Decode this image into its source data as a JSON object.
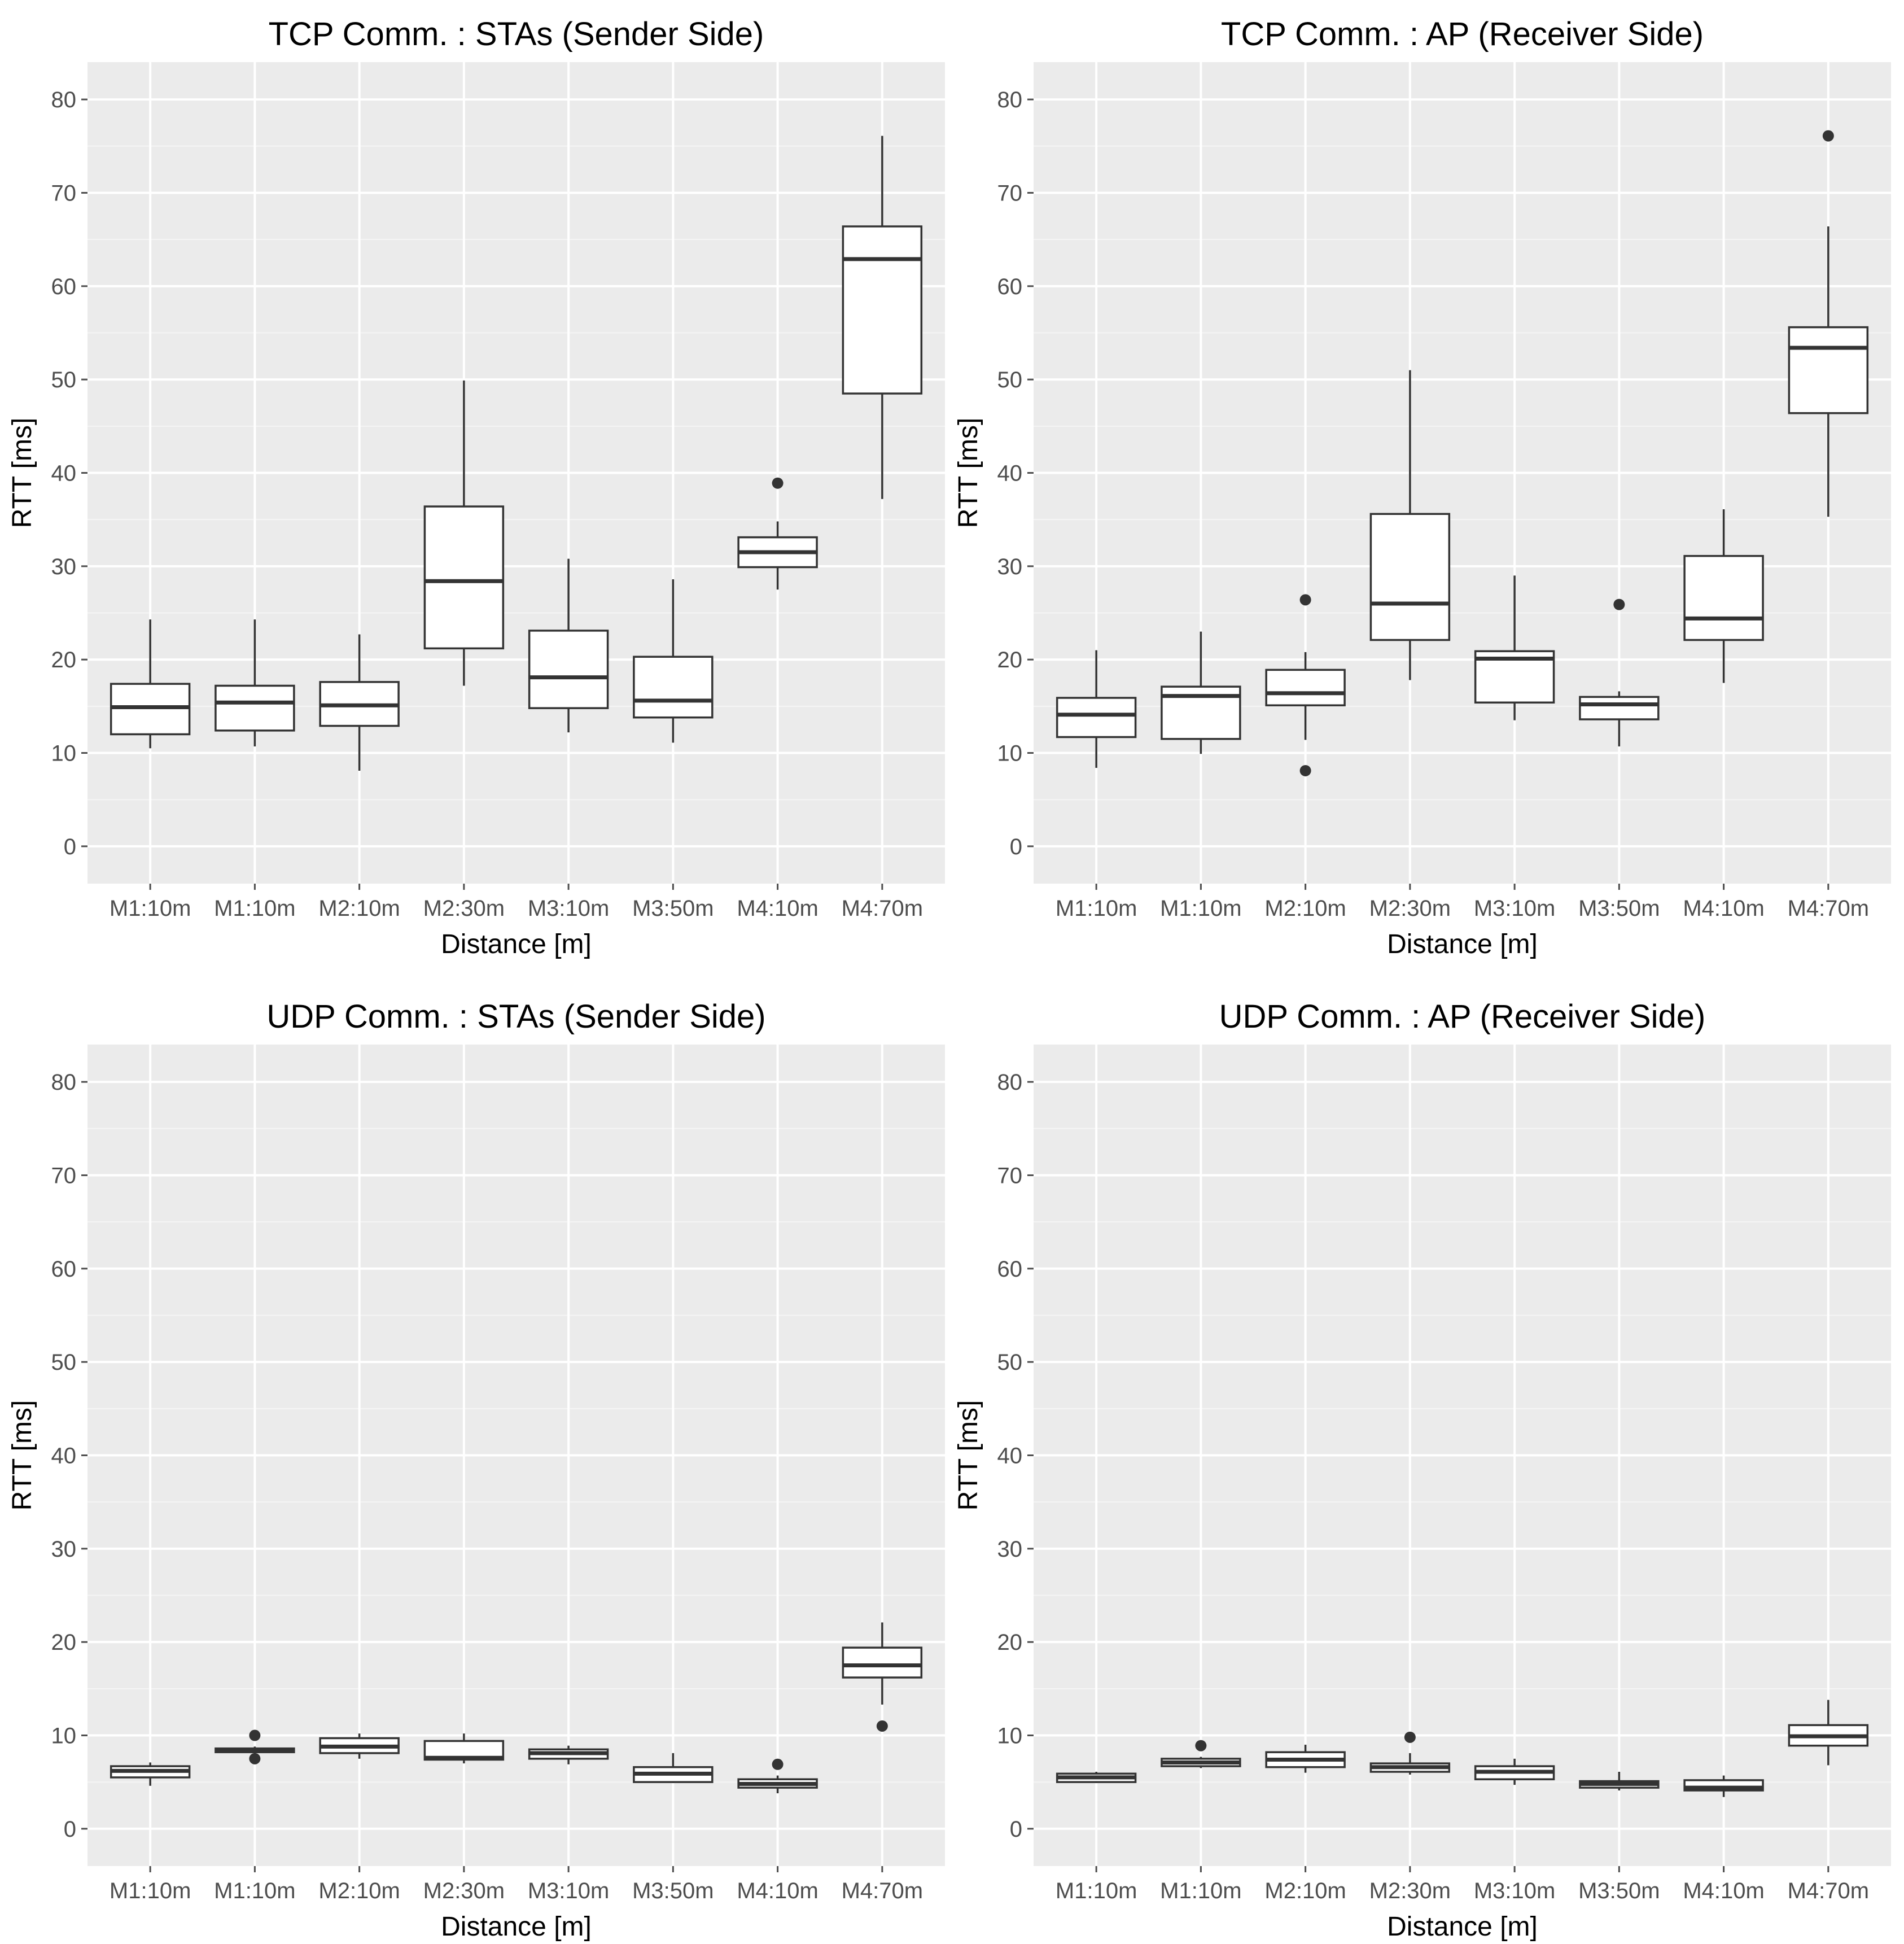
{
  "figure": {
    "panel_background": "#ebebeb",
    "grid_major": "#ffffff",
    "grid_minor": "#f5f5f5",
    "box_fill": "#ffffff",
    "box_stroke": "#333333",
    "tick_color": "#4d4d4d"
  },
  "chart_data": [
    {
      "type": "boxplot",
      "title": "TCP Comm. : STAs (Sender Side)",
      "xlabel": "Distance [m]",
      "ylabel": "RTT [ms]",
      "ylim": [
        -4,
        84
      ],
      "yticks": [
        0,
        10,
        20,
        30,
        40,
        50,
        60,
        70,
        80
      ],
      "ytick_labels": [
        "0",
        "10",
        "20",
        "30",
        "40",
        "50",
        "60",
        "70",
        "80"
      ],
      "categories": [
        "M1:10m",
        "M1:10m",
        "M2:10m",
        "M2:30m",
        "M3:10m",
        "M3:50m",
        "M4:10m",
        "M4:70m"
      ],
      "boxes": [
        {
          "lower": 10.5,
          "q1": 12.0,
          "median": 14.9,
          "q3": 17.4,
          "upper": 24.3,
          "outliers": []
        },
        {
          "lower": 10.7,
          "q1": 12.4,
          "median": 15.4,
          "q3": 17.2,
          "upper": 24.3,
          "outliers": []
        },
        {
          "lower": 8.1,
          "q1": 12.9,
          "median": 15.1,
          "q3": 17.6,
          "upper": 22.7,
          "outliers": []
        },
        {
          "lower": 17.2,
          "q1": 21.2,
          "median": 28.4,
          "q3": 36.4,
          "upper": 49.9,
          "outliers": []
        },
        {
          "lower": 12.2,
          "q1": 14.8,
          "median": 18.1,
          "q3": 23.1,
          "upper": 30.8,
          "outliers": []
        },
        {
          "lower": 11.1,
          "q1": 13.8,
          "median": 15.6,
          "q3": 20.3,
          "upper": 28.6,
          "outliers": []
        },
        {
          "lower": 27.5,
          "q1": 29.9,
          "median": 31.5,
          "q3": 33.1,
          "upper": 34.8,
          "outliers": [
            38.9
          ]
        },
        {
          "lower": 37.2,
          "q1": 48.5,
          "median": 62.9,
          "q3": 66.4,
          "upper": 76.1,
          "outliers": []
        }
      ]
    },
    {
      "type": "boxplot",
      "title": "TCP Comm. : AP (Receiver Side)",
      "xlabel": "Distance [m]",
      "ylabel": "RTT [ms]",
      "ylim": [
        -4,
        84
      ],
      "yticks": [
        0,
        10,
        20,
        30,
        40,
        50,
        60,
        70,
        80
      ],
      "ytick_labels": [
        "0",
        "10",
        "20",
        "30",
        "40",
        "50",
        "60",
        "70",
        "80"
      ],
      "categories": [
        "M1:10m",
        "M1:10m",
        "M2:10m",
        "M2:30m",
        "M3:10m",
        "M3:50m",
        "M4:10m",
        "M4:70m"
      ],
      "boxes": [
        {
          "lower": 8.4,
          "q1": 11.7,
          "median": 14.1,
          "q3": 15.9,
          "upper": 21.0,
          "outliers": []
        },
        {
          "lower": 9.9,
          "q1": 11.5,
          "median": 16.1,
          "q3": 17.1,
          "upper": 23.0,
          "outliers": []
        },
        {
          "lower": 11.4,
          "q1": 15.1,
          "median": 16.4,
          "q3": 18.9,
          "upper": 20.8,
          "outliers": [
            26.4,
            8.1
          ]
        },
        {
          "lower": 17.8,
          "q1": 22.1,
          "median": 26.0,
          "q3": 35.6,
          "upper": 51.0,
          "outliers": []
        },
        {
          "lower": 13.5,
          "q1": 15.4,
          "median": 20.1,
          "q3": 20.9,
          "upper": 29.0,
          "outliers": []
        },
        {
          "lower": 10.7,
          "q1": 13.6,
          "median": 15.2,
          "q3": 16.0,
          "upper": 16.6,
          "outliers": [
            25.9
          ]
        },
        {
          "lower": 17.5,
          "q1": 22.1,
          "median": 24.4,
          "q3": 31.1,
          "upper": 36.1,
          "outliers": []
        },
        {
          "lower": 35.3,
          "q1": 46.4,
          "median": 53.4,
          "q3": 55.6,
          "upper": 66.4,
          "outliers": [
            76.1
          ]
        }
      ]
    },
    {
      "type": "boxplot",
      "title": "UDP Comm. : STAs (Sender Side)",
      "xlabel": "Distance [m]",
      "ylabel": "RTT [ms]",
      "ylim": [
        -4,
        84
      ],
      "yticks": [
        0,
        10,
        20,
        30,
        40,
        50,
        60,
        70,
        80
      ],
      "ytick_labels": [
        "0",
        "10",
        "20",
        "30",
        "40",
        "50",
        "60",
        "70",
        "80"
      ],
      "categories": [
        "M1:10m",
        "M1:10m",
        "M2:10m",
        "M2:30m",
        "M3:10m",
        "M3:50m",
        "M4:10m",
        "M4:70m"
      ],
      "boxes": [
        {
          "lower": 4.6,
          "q1": 5.5,
          "median": 6.2,
          "q3": 6.7,
          "upper": 7.1,
          "outliers": []
        },
        {
          "lower": 8.1,
          "q1": 8.2,
          "median": 8.4,
          "q3": 8.6,
          "upper": 8.8,
          "outliers": [
            10.0,
            7.5
          ]
        },
        {
          "lower": 7.5,
          "q1": 8.1,
          "median": 8.8,
          "q3": 9.7,
          "upper": 10.2,
          "outliers": []
        },
        {
          "lower": 7.0,
          "q1": 7.4,
          "median": 7.6,
          "q3": 9.4,
          "upper": 10.2,
          "outliers": []
        },
        {
          "lower": 6.9,
          "q1": 7.5,
          "median": 8.1,
          "q3": 8.5,
          "upper": 8.9,
          "outliers": []
        },
        {
          "lower": 4.9,
          "q1": 5.0,
          "median": 5.9,
          "q3": 6.6,
          "upper": 8.1,
          "outliers": []
        },
        {
          "lower": 3.8,
          "q1": 4.4,
          "median": 4.8,
          "q3": 5.3,
          "upper": 5.7,
          "outliers": [
            6.9
          ]
        },
        {
          "lower": 13.3,
          "q1": 16.2,
          "median": 17.5,
          "q3": 19.4,
          "upper": 22.1,
          "outliers": [
            11.0
          ]
        }
      ]
    },
    {
      "type": "boxplot",
      "title": "UDP Comm. : AP (Receiver Side)",
      "xlabel": "Distance [m]",
      "ylabel": "RTT [ms]",
      "ylim": [
        -4,
        84
      ],
      "yticks": [
        0,
        10,
        20,
        30,
        40,
        50,
        60,
        70,
        80
      ],
      "ytick_labels": [
        "0",
        "10",
        "20",
        "30",
        "40",
        "50",
        "60",
        "70",
        "80"
      ],
      "categories": [
        "M1:10m",
        "M1:10m",
        "M2:10m",
        "M2:30m",
        "M3:10m",
        "M3:50m",
        "M4:10m",
        "M4:70m"
      ],
      "boxes": [
        {
          "lower": 4.9,
          "q1": 5.0,
          "median": 5.5,
          "q3": 5.9,
          "upper": 6.1,
          "outliers": []
        },
        {
          "lower": 6.5,
          "q1": 6.7,
          "median": 7.1,
          "q3": 7.5,
          "upper": 7.7,
          "outliers": [
            8.9
          ]
        },
        {
          "lower": 6.0,
          "q1": 6.6,
          "median": 7.4,
          "q3": 8.2,
          "upper": 9.0,
          "outliers": []
        },
        {
          "lower": 5.8,
          "q1": 6.1,
          "median": 6.6,
          "q3": 7.0,
          "upper": 8.1,
          "outliers": [
            9.8
          ]
        },
        {
          "lower": 4.7,
          "q1": 5.3,
          "median": 6.1,
          "q3": 6.7,
          "upper": 7.5,
          "outliers": []
        },
        {
          "lower": 4.1,
          "q1": 4.4,
          "median": 4.8,
          "q3": 5.1,
          "upper": 6.1,
          "outliers": []
        },
        {
          "lower": 3.4,
          "q1": 4.1,
          "median": 4.4,
          "q3": 5.2,
          "upper": 5.7,
          "outliers": []
        },
        {
          "lower": 6.8,
          "q1": 8.9,
          "median": 9.9,
          "q3": 11.1,
          "upper": 13.8,
          "outliers": []
        }
      ]
    }
  ]
}
